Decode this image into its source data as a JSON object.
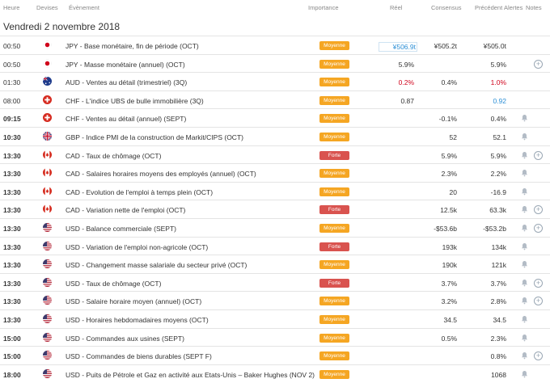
{
  "header": {
    "heure": "Heure",
    "devises": "Devises",
    "evenement": "Évènement",
    "importance": "Importance",
    "reel": "Réel",
    "consensus": "Consensus",
    "precedent": "Précédent",
    "alertes": "Alertes",
    "notes": "Notes"
  },
  "date": "Vendredi 2 novembre 2018",
  "colors": {
    "moyenne": "#f5a623",
    "forte": "#d9534f",
    "actual_up": "#2b8fd6",
    "actual_down": "#d0021b"
  },
  "rows": [
    {
      "time": "00:50",
      "bold": false,
      "flag": "jp",
      "event": "JPY - Base monétaire, fin de période (OCT)",
      "importance": "Moyenne",
      "actual": "¥506.9t",
      "actual_color": "blue",
      "consensus": "¥505.2t",
      "previous": "¥505.0t",
      "prev_color": "",
      "bell": false,
      "plus": false
    },
    {
      "time": "00:50",
      "bold": false,
      "flag": "jp",
      "event": "JPY - Masse monétaire (annuel) (OCT)",
      "importance": "Moyenne",
      "actual": "5.9%",
      "actual_color": "",
      "consensus": "",
      "previous": "5.9%",
      "prev_color": "",
      "bell": false,
      "plus": true
    },
    {
      "time": "01:30",
      "bold": false,
      "flag": "au",
      "event": "AUD - Ventes au détail (trimestriel) (3Q)",
      "importance": "Moyenne",
      "actual": "0.2%",
      "actual_color": "red",
      "consensus": "0.4%",
      "previous": "1.0%",
      "prev_color": "red",
      "bell": false,
      "plus": false
    },
    {
      "time": "08:00",
      "bold": false,
      "flag": "ch",
      "event": "CHF - L'indice UBS de bulle immobilière (3Q)",
      "importance": "Moyenne",
      "actual": "0.87",
      "actual_color": "",
      "consensus": "",
      "previous": "0.92",
      "prev_color": "blue",
      "bell": false,
      "plus": false
    },
    {
      "time": "09:15",
      "bold": true,
      "flag": "ch",
      "event": "CHF - Ventes au détail (annuel) (SEPT)",
      "importance": "Moyenne",
      "actual": "",
      "actual_color": "",
      "consensus": "-0.1%",
      "previous": "0.4%",
      "prev_color": "",
      "bell": true,
      "plus": false
    },
    {
      "time": "10:30",
      "bold": true,
      "flag": "gb",
      "event": "GBP - Indice PMI de la construction de Markit/CIPS (OCT)",
      "importance": "Moyenne",
      "actual": "",
      "actual_color": "",
      "consensus": "52",
      "previous": "52.1",
      "prev_color": "",
      "bell": true,
      "plus": false
    },
    {
      "time": "13:30",
      "bold": true,
      "flag": "ca",
      "event": "CAD - Taux de chômage (OCT)",
      "importance": "Forte",
      "actual": "",
      "actual_color": "",
      "consensus": "5.9%",
      "previous": "5.9%",
      "prev_color": "",
      "bell": true,
      "plus": true
    },
    {
      "time": "13:30",
      "bold": true,
      "flag": "ca",
      "event": "CAD - Salaires horaires moyens des employés (annuel) (OCT)",
      "importance": "Moyenne",
      "actual": "",
      "actual_color": "",
      "consensus": "2.3%",
      "previous": "2.2%",
      "prev_color": "",
      "bell": true,
      "plus": false
    },
    {
      "time": "13:30",
      "bold": true,
      "flag": "ca",
      "event": "CAD - Evolution de l'emploi à temps plein (OCT)",
      "importance": "Moyenne",
      "actual": "",
      "actual_color": "",
      "consensus": "20",
      "previous": "-16.9",
      "prev_color": "",
      "bell": true,
      "plus": false
    },
    {
      "time": "13:30",
      "bold": true,
      "flag": "ca",
      "event": "CAD - Variation nette de l'emploi (OCT)",
      "importance": "Forte",
      "actual": "",
      "actual_color": "",
      "consensus": "12.5k",
      "previous": "63.3k",
      "prev_color": "",
      "bell": true,
      "plus": true
    },
    {
      "time": "13:30",
      "bold": true,
      "flag": "us",
      "event": "USD - Balance commerciale (SEPT)",
      "importance": "Moyenne",
      "actual": "",
      "actual_color": "",
      "consensus": "-$53.6b",
      "previous": "-$53.2b",
      "prev_color": "",
      "bell": true,
      "plus": true
    },
    {
      "time": "13:30",
      "bold": true,
      "flag": "us",
      "event": "USD - Variation de l'emploi non-agricole (OCT)",
      "importance": "Forte",
      "actual": "",
      "actual_color": "",
      "consensus": "193k",
      "previous": "134k",
      "prev_color": "",
      "bell": true,
      "plus": false
    },
    {
      "time": "13:30",
      "bold": true,
      "flag": "us",
      "event": "USD - Changement masse salariale du secteur privé (OCT)",
      "importance": "Moyenne",
      "actual": "",
      "actual_color": "",
      "consensus": "190k",
      "previous": "121k",
      "prev_color": "",
      "bell": true,
      "plus": false
    },
    {
      "time": "13:30",
      "bold": true,
      "flag": "us",
      "event": "USD - Taux de chômage (OCT)",
      "importance": "Forte",
      "actual": "",
      "actual_color": "",
      "consensus": "3.7%",
      "previous": "3.7%",
      "prev_color": "",
      "bell": true,
      "plus": true
    },
    {
      "time": "13:30",
      "bold": true,
      "flag": "us",
      "event": "USD - Salaire horaire moyen (annuel) (OCT)",
      "importance": "Moyenne",
      "actual": "",
      "actual_color": "",
      "consensus": "3.2%",
      "previous": "2.8%",
      "prev_color": "",
      "bell": true,
      "plus": true
    },
    {
      "time": "13:30",
      "bold": true,
      "flag": "us",
      "event": "USD - Horaires hebdomadaires moyens (OCT)",
      "importance": "Moyenne",
      "actual": "",
      "actual_color": "",
      "consensus": "34.5",
      "previous": "34.5",
      "prev_color": "",
      "bell": true,
      "plus": false
    },
    {
      "time": "15:00",
      "bold": true,
      "flag": "us",
      "event": "USD - Commandes aux usines (SEPT)",
      "importance": "Moyenne",
      "actual": "",
      "actual_color": "",
      "consensus": "0.5%",
      "previous": "2.3%",
      "prev_color": "",
      "bell": true,
      "plus": false
    },
    {
      "time": "15:00",
      "bold": true,
      "flag": "us",
      "event": "USD - Commandes de biens durables (SEPT F)",
      "importance": "Moyenne",
      "actual": "",
      "actual_color": "",
      "consensus": "",
      "previous": "0.8%",
      "prev_color": "",
      "bell": true,
      "plus": true
    },
    {
      "time": "18:00",
      "bold": true,
      "flag": "us",
      "event": "USD - Puits de Pétrole et Gaz en activité aux Etats-Unis – Baker Hughes (NOV 2)",
      "importance": "Moyenne",
      "actual": "",
      "actual_color": "",
      "consensus": "",
      "previous": "1068",
      "prev_color": "",
      "bell": true,
      "plus": false
    }
  ]
}
